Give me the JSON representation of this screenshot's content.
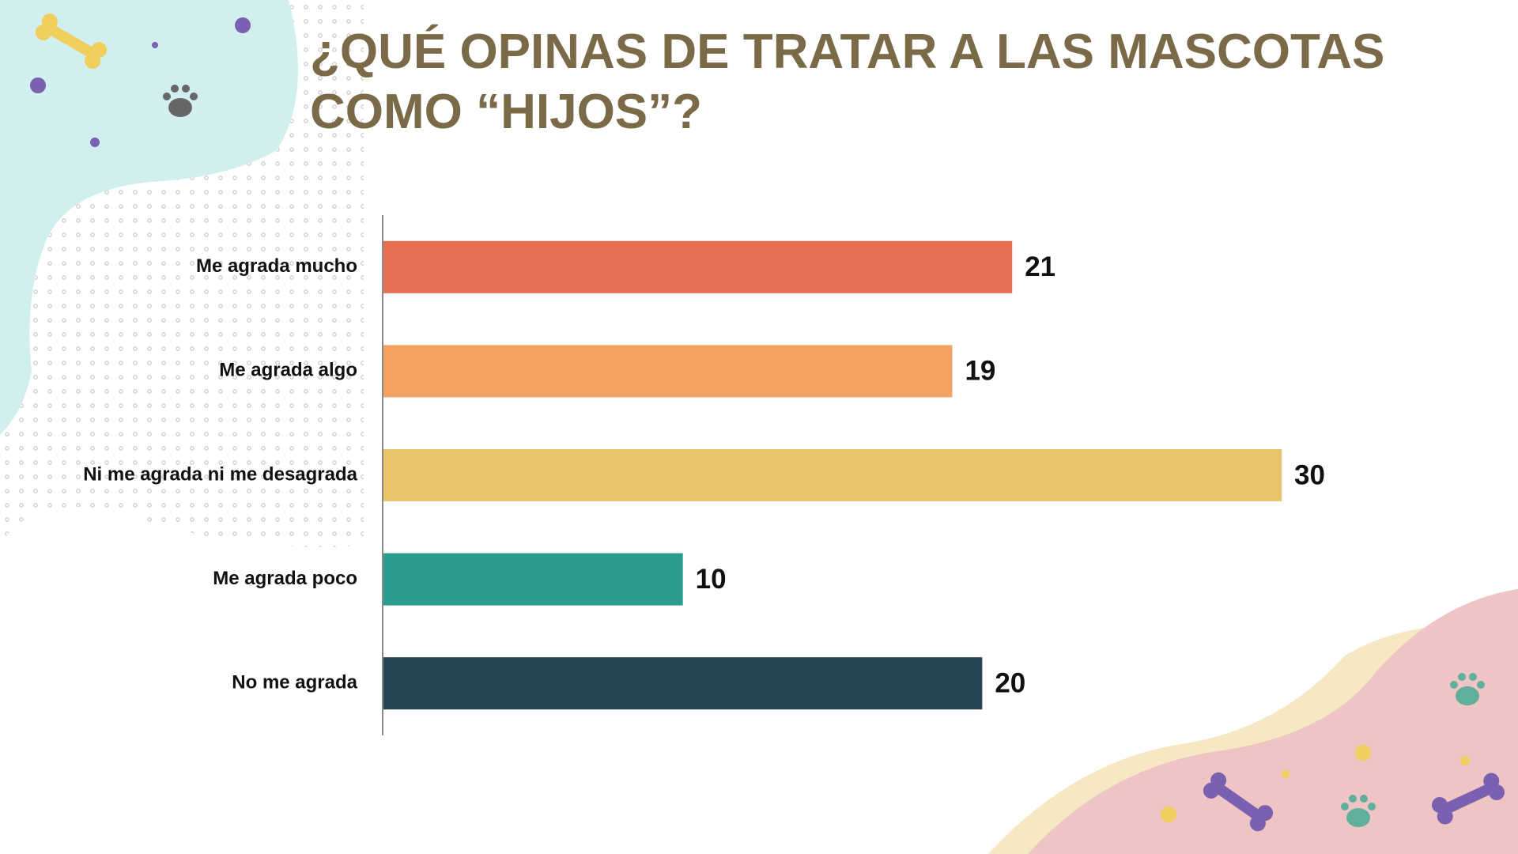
{
  "chart_data": {
    "type": "bar",
    "orientation": "horizontal",
    "title": "¿QUÉ OPINAS DE TRATAR A LAS MASCOTAS COMO “HIJOS”?",
    "categories": [
      "Me agrada mucho",
      "Me agrada algo",
      "Ni me agrada ni me desagrada",
      "Me agrada poco",
      "No me agrada"
    ],
    "values": [
      21,
      19,
      30,
      10,
      20
    ],
    "colors": [
      "#e76f51",
      "#f4a261",
      "#e9c46a",
      "#2a9d8f",
      "#264653"
    ]
  }
}
